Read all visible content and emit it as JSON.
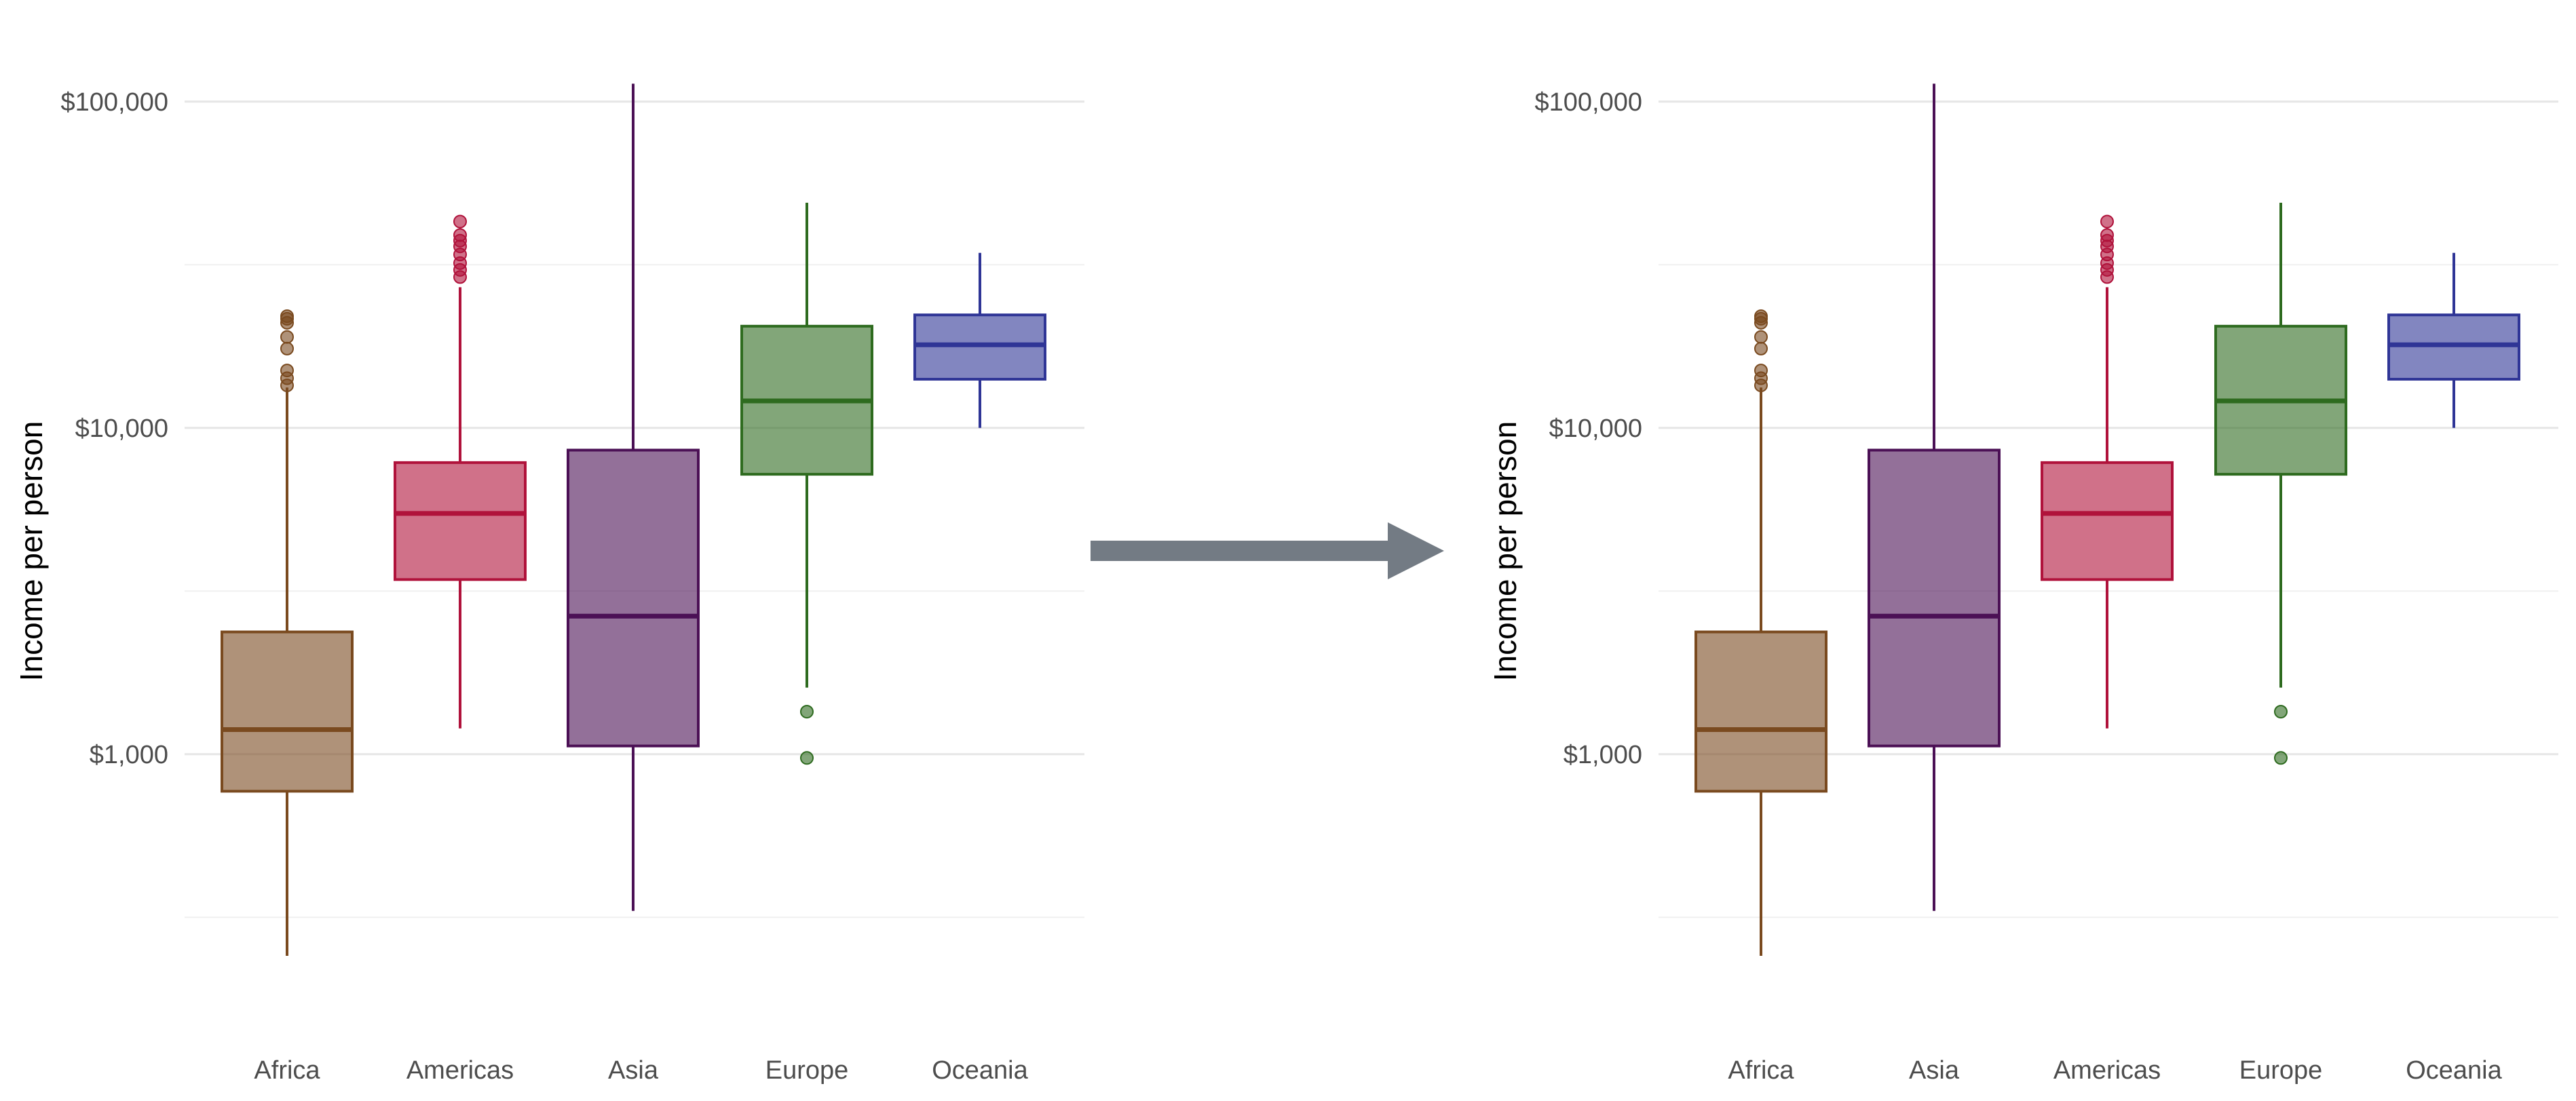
{
  "chart_data": [
    {
      "type": "box",
      "ylabel": "Income per person",
      "xlabel": "",
      "yscale": "log10",
      "ylim": [
        180,
        130000
      ],
      "yticks": [
        1000,
        10000,
        100000
      ],
      "ytick_labels": [
        "$1,000",
        "$10,000",
        "$100,000"
      ],
      "grid": true,
      "categories": [
        "Africa",
        "Americas",
        "Asia",
        "Europe",
        "Oceania"
      ],
      "boxes": [
        {
          "category": "Africa",
          "whisker_low": 241,
          "q1": 770,
          "median": 1190,
          "q3": 2370,
          "whisker_high": 13300,
          "outliers": [
            13500,
            14200,
            15000,
            17500,
            19000,
            21000,
            21600,
            22000
          ],
          "color": "#7a4a1f"
        },
        {
          "category": "Americas",
          "whisker_low": 1200,
          "q1": 3430,
          "median": 5470,
          "q3": 7830,
          "whisker_high": 27000,
          "outliers": [
            29000,
            30500,
            32000,
            34000,
            36000,
            37500,
            39000,
            42900
          ],
          "color": "#b0123b"
        },
        {
          "category": "Asia",
          "whisker_low": 331,
          "q1": 1060,
          "median": 2650,
          "q3": 8550,
          "whisker_high": 113500,
          "outliers": [],
          "color": "#4b1055"
        },
        {
          "category": "Europe",
          "whisker_low": 1600,
          "q1": 7210,
          "median": 12100,
          "q3": 20500,
          "whisker_high": 49000,
          "outliers": [
            974,
            1350
          ],
          "color": "#2e6b1f"
        },
        {
          "category": "Oceania",
          "whisker_low": 10000,
          "q1": 14100,
          "median": 17980,
          "q3": 22200,
          "whisker_high": 34400,
          "outliers": [],
          "color": "#2f3596"
        }
      ]
    },
    {
      "type": "box",
      "ylabel": "Income per person",
      "xlabel": "",
      "yscale": "log10",
      "ylim": [
        180,
        130000
      ],
      "yticks": [
        1000,
        10000,
        100000
      ],
      "ytick_labels": [
        "$1,000",
        "$10,000",
        "$100,000"
      ],
      "grid": true,
      "categories": [
        "Africa",
        "Asia",
        "Americas",
        "Europe",
        "Oceania"
      ],
      "boxes": [
        {
          "category": "Africa",
          "whisker_low": 241,
          "q1": 770,
          "median": 1190,
          "q3": 2370,
          "whisker_high": 13300,
          "outliers": [
            13500,
            14200,
            15000,
            17500,
            19000,
            21000,
            21600,
            22000
          ],
          "color": "#7a4a1f"
        },
        {
          "category": "Asia",
          "whisker_low": 331,
          "q1": 1060,
          "median": 2650,
          "q3": 8550,
          "whisker_high": 113500,
          "outliers": [],
          "color": "#4b1055"
        },
        {
          "category": "Americas",
          "whisker_low": 1200,
          "q1": 3430,
          "median": 5470,
          "q3": 7830,
          "whisker_high": 27000,
          "outliers": [
            29000,
            30500,
            32000,
            34000,
            36000,
            37500,
            39000,
            42900
          ],
          "color": "#b0123b"
        },
        {
          "category": "Europe",
          "whisker_low": 1600,
          "q1": 7210,
          "median": 12100,
          "q3": 20500,
          "whisker_high": 49000,
          "outliers": [
            974,
            1350
          ],
          "color": "#2e6b1f"
        },
        {
          "category": "Oceania",
          "whisker_low": 10000,
          "q1": 14100,
          "median": 17980,
          "q3": 22200,
          "whisker_high": 34400,
          "outliers": [],
          "color": "#2f3596"
        }
      ]
    }
  ],
  "arrow": {
    "color": "#737b84",
    "icon": "right-arrow-icon"
  }
}
